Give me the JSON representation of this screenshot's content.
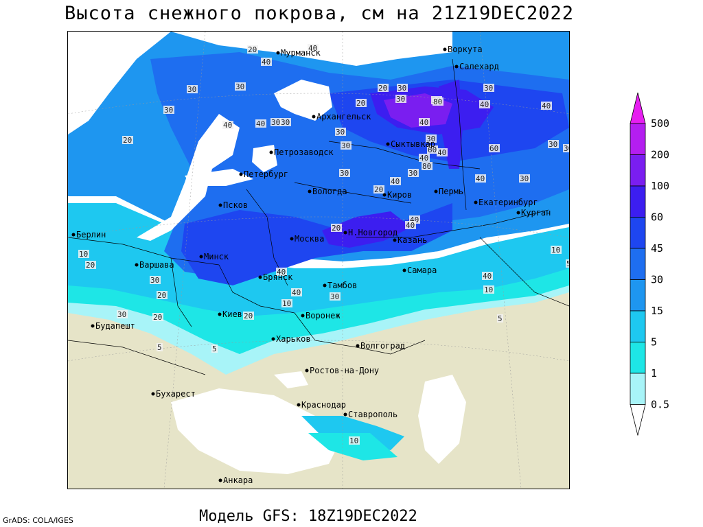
{
  "title": "Высота снежного покрова, см на 21Z19DEC2022",
  "footer": {
    "model": "Модель GFS: 18Z19DEC2022",
    "grads": "GrADS: COLA/IGES"
  },
  "legend": {
    "levels": [
      "0.5",
      "1",
      "5",
      "15",
      "30",
      "45",
      "60",
      "100",
      "200",
      "500"
    ],
    "colors": [
      "#ffffff",
      "#a8f4f8",
      "#1ee6e6",
      "#1ec8f0",
      "#1e96f0",
      "#1e6ef0",
      "#1e46f0",
      "#3c1ef0",
      "#7a1ef0",
      "#b41ef0",
      "#e61ef0"
    ]
  },
  "map": {
    "colors": {
      "land": "#e6e4c8",
      "sea": "#ffffff",
      "snow_0_5": "#a8f4f8",
      "snow_1": "#1ee6e6",
      "snow_5": "#1ec8f0",
      "snow_15": "#1e96f0",
      "snow_30": "#1e6ef0",
      "snow_45": "#1e46f0",
      "snow_60": "#3c1ef0",
      "snow_100": "#7a1ef0"
    },
    "cities": [
      {
        "name": "Мурманск"
      },
      {
        "name": "Воркута"
      },
      {
        "name": "Салехард"
      },
      {
        "name": "Архангельск"
      },
      {
        "name": "Сыктывкар"
      },
      {
        "name": "Петрозаводск"
      },
      {
        "name": "Петербург"
      },
      {
        "name": "Вологда"
      },
      {
        "name": "Киров"
      },
      {
        "name": "Пермь"
      },
      {
        "name": "Екатеринбург"
      },
      {
        "name": "Курган"
      },
      {
        "name": "Псков"
      },
      {
        "name": "Москва"
      },
      {
        "name": "Н.Новгород"
      },
      {
        "name": "Казань"
      },
      {
        "name": "Берлин"
      },
      {
        "name": "Варшава"
      },
      {
        "name": "Минск"
      },
      {
        "name": "Брянск"
      },
      {
        "name": "Тамбов"
      },
      {
        "name": "Самара"
      },
      {
        "name": "Киев"
      },
      {
        "name": "Воронеж"
      },
      {
        "name": "Будапешт"
      },
      {
        "name": "Харьков"
      },
      {
        "name": "Волгоград"
      },
      {
        "name": "Ростов-на-Дону"
      },
      {
        "name": "Бухарест"
      },
      {
        "name": "Краснодар"
      },
      {
        "name": "Ставрополь"
      },
      {
        "name": "Анкара"
      }
    ],
    "contour_labels": [
      "20",
      "40",
      "40",
      "30",
      "30",
      "30",
      "20",
      "40",
      "40",
      "30",
      "30",
      "30",
      "30",
      "20",
      "30",
      "20",
      "30",
      "30",
      "40",
      "30",
      "30",
      "40",
      "40",
      "30",
      "40",
      "30",
      "30",
      "60",
      "40",
      "80",
      "40",
      "60",
      "80",
      "30",
      "40",
      "20",
      "30",
      "40",
      "40",
      "20",
      "40",
      "10",
      "5",
      "10",
      "20",
      "30",
      "20",
      "40",
      "40",
      "30",
      "30",
      "20",
      "20",
      "5",
      "5",
      "10",
      "10",
      "5",
      "10"
    ]
  }
}
